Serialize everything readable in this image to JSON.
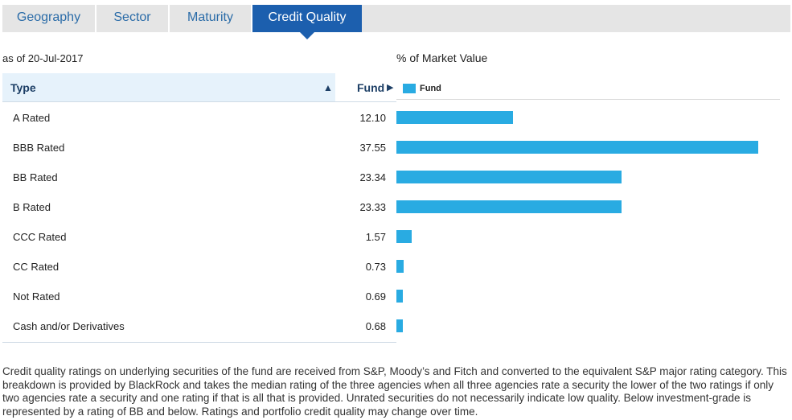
{
  "tabs": [
    {
      "label": "Geography"
    },
    {
      "label": "Sector"
    },
    {
      "label": "Maturity"
    },
    {
      "label": "Credit Quality",
      "active": true
    }
  ],
  "as_of": "as of 20-Jul-2017",
  "chart_title": "% of Market Value",
  "table": {
    "type_header": "Type",
    "type_sort_icon": "▲",
    "fund_header": "Fund",
    "fund_arrow_icon": "▶"
  },
  "legend": {
    "label": "Fund",
    "color": "#29abe2"
  },
  "chart_data": {
    "type": "bar",
    "orientation": "horizontal",
    "title": "% of Market Value",
    "categories": [
      "A Rated",
      "BBB Rated",
      "BB Rated",
      "B Rated",
      "CCC Rated",
      "CC Rated",
      "Not Rated",
      "Cash and/or Derivatives"
    ],
    "series": [
      {
        "name": "Fund",
        "values": [
          12.1,
          37.55,
          23.34,
          23.33,
          1.57,
          0.73,
          0.69,
          0.68
        ],
        "labels": [
          "12.10",
          "37.55",
          "23.34",
          "23.33",
          "1.57",
          "0.73",
          "0.69",
          "0.68"
        ]
      }
    ],
    "xlim": [
      0,
      37.55
    ]
  },
  "footnote": "Credit quality ratings on underlying securities of the fund are received from S&P, Moody’s and Fitch and converted to the equivalent S&P major rating category. This breakdown is provided by BlackRock and takes the median rating of the three agencies when all three agencies rate a security the lower of the two ratings if only two agencies rate a security and one rating if that is all that is provided. Unrated securities do not necessarily indicate low quality. Below investment-grade is represented by a rating of BB and below. Ratings and portfolio credit quality may change over time."
}
